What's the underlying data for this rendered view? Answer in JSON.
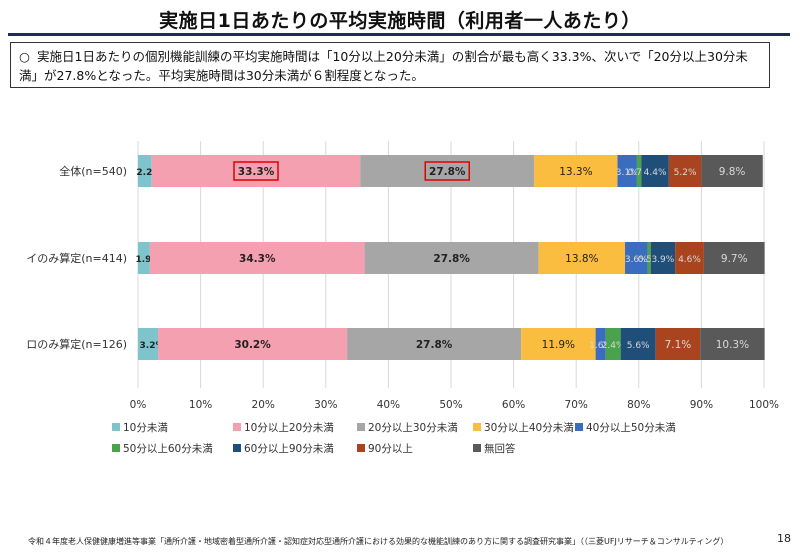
{
  "page": {
    "title": "実施日1日あたりの平均実施時間（利用者一人あたり）",
    "summary_mark": "○",
    "summary": "実施日1日あたりの個別機能訓練の平均実施時間は「10分以上20分未満」の割合が最も高く33.3%、次いで「20分以上30分未満」が27.8%となった。平均実施時間は30分未満が６割程度となった。",
    "footer_source": "令和４年度老人保健健康増進等事業「通所介護・地域密着型通所介護・認知症対応型通所介護における効果的な機能訓練のあり方に関する調査研究事業」（（三菱UFJリサーチ＆コンサルティング）",
    "page_number": "18"
  },
  "chart_data": {
    "type": "bar",
    "orientation": "horizontal",
    "stacked": true,
    "percent": true,
    "categories": [
      "全体(n=540)",
      "イのみ算定(n=414)",
      "ロのみ算定(n=126)"
    ],
    "xlim": [
      0,
      100
    ],
    "x_ticks": [
      "0%",
      "10%",
      "20%",
      "30%",
      "40%",
      "50%",
      "60%",
      "70%",
      "80%",
      "90%",
      "100%"
    ],
    "gridlines": true,
    "legend_position": "bottom",
    "series": [
      {
        "name": "10分未満",
        "color": "#7fc4cc",
        "values": [
          2.2,
          1.9,
          3.2
        ],
        "labels": [
          "2.2%",
          "1.9%",
          "3.2%"
        ]
      },
      {
        "name": "10分以上20分未満",
        "color": "#f5a0b0",
        "values": [
          33.3,
          34.3,
          30.2
        ],
        "labels": [
          "33.3%",
          "34.3%",
          "30.2%"
        ]
      },
      {
        "name": "20分以上30分未満",
        "color": "#a6a6a6",
        "values": [
          27.8,
          27.8,
          27.8
        ],
        "labels": [
          "27.8%",
          "27.8%",
          "27.8%"
        ]
      },
      {
        "name": "30分以上40分未満",
        "color": "#fbbd3f",
        "values": [
          13.3,
          13.8,
          11.9
        ],
        "labels": [
          "13.3%",
          "13.8%",
          "11.9%"
        ]
      },
      {
        "name": "40分以上50分未満",
        "color": "#3a6cc0",
        "values": [
          3.1,
          3.6,
          1.6
        ],
        "labels": [
          "3.1%",
          "3.6%",
          "1.6%"
        ]
      },
      {
        "name": "50分以上60分未満",
        "color": "#4aa34a",
        "values": [
          0.7,
          0.5,
          2.4
        ],
        "labels": [
          "0.7%",
          "0.5%",
          "2.4%"
        ]
      },
      {
        "name": "60分以上90分未満",
        "color": "#1f4e79",
        "values": [
          4.4,
          3.9,
          5.6
        ],
        "labels": [
          "4.4%",
          "3.9%",
          "5.6%"
        ]
      },
      {
        "name": "90分以上",
        "color": "#a9441e",
        "values": [
          5.2,
          4.6,
          7.1
        ],
        "labels": [
          "5.2%",
          "4.6%",
          "7.1%"
        ]
      },
      {
        "name": "無回答",
        "color": "#595959",
        "values": [
          9.8,
          9.7,
          10.3
        ],
        "labels": [
          "9.8%",
          "9.7%",
          "10.3%"
        ]
      }
    ],
    "highlight_boxes": [
      {
        "category_index": 0,
        "series_index": 1,
        "color": "#e00000"
      },
      {
        "category_index": 0,
        "series_index": 2,
        "color": "#e00000"
      }
    ]
  }
}
